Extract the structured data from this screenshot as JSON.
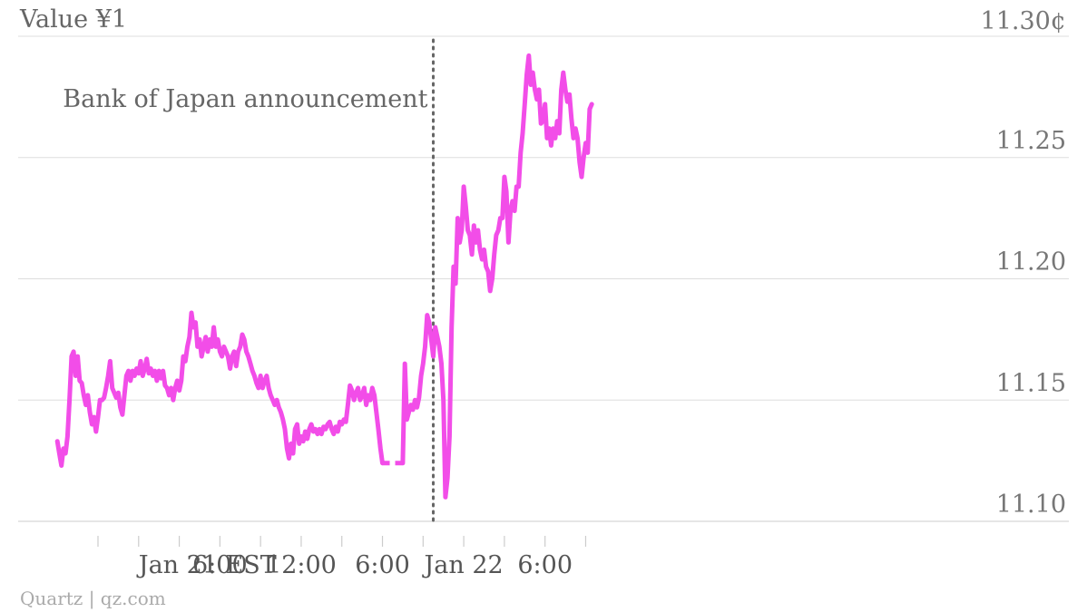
{
  "source": "Quartz | qz.com",
  "chart_data": {
    "type": "line",
    "title": "Value ¥1",
    "y_unit_label": "11.30¢",
    "ylim": [
      11.1,
      11.3
    ],
    "y_ticks": [
      11.1,
      11.15,
      11.2,
      11.25,
      11.3
    ],
    "y_tick_labels": [
      "11.10",
      "11.15",
      "11.20",
      "11.25",
      "11.30¢"
    ],
    "x_tick_labels": [
      "Jan 21 EST",
      "6:00",
      "12:00",
      "6:00",
      "Jan 22",
      "6:00"
    ],
    "x_hours": [
      0,
      6,
      12,
      18,
      24,
      30
    ],
    "xlim": [
      -6,
      32.5
    ],
    "annotation": {
      "text": "Bank of Japan announcement",
      "x": 21.75
    },
    "gap": {
      "from": 18,
      "to": 19.5,
      "value": 11.124
    },
    "colors": {
      "line": "#f24de8",
      "annotation": "#666666",
      "grid": "#dddddd",
      "text": "#777777"
    },
    "series": [
      {
        "values": [
          [
            -6.0,
            11.133
          ],
          [
            -5.85,
            11.128
          ],
          [
            -5.7,
            11.123
          ],
          [
            -5.55,
            11.13
          ],
          [
            -5.4,
            11.128
          ],
          [
            -5.25,
            11.135
          ],
          [
            -5.1,
            11.15
          ],
          [
            -4.95,
            11.168
          ],
          [
            -4.8,
            11.17
          ],
          [
            -4.65,
            11.16
          ],
          [
            -4.5,
            11.168
          ],
          [
            -4.35,
            11.158
          ],
          [
            -4.2,
            11.157
          ],
          [
            -4.05,
            11.152
          ],
          [
            -3.9,
            11.148
          ],
          [
            -3.75,
            11.152
          ],
          [
            -3.6,
            11.145
          ],
          [
            -3.45,
            11.14
          ],
          [
            -3.3,
            11.143
          ],
          [
            -3.15,
            11.137
          ],
          [
            -3.0,
            11.143
          ],
          [
            -2.85,
            11.15
          ],
          [
            -2.7,
            11.15
          ],
          [
            -2.55,
            11.151
          ],
          [
            -2.4,
            11.155
          ],
          [
            -2.25,
            11.16
          ],
          [
            -2.1,
            11.166
          ],
          [
            -1.95,
            11.155
          ],
          [
            -1.8,
            11.153
          ],
          [
            -1.65,
            11.151
          ],
          [
            -1.5,
            11.153
          ],
          [
            -1.35,
            11.147
          ],
          [
            -1.2,
            11.144
          ],
          [
            -1.05,
            11.152
          ],
          [
            -0.9,
            11.16
          ],
          [
            -0.75,
            11.162
          ],
          [
            -0.6,
            11.158
          ],
          [
            -0.45,
            11.162
          ],
          [
            -0.3,
            11.16
          ],
          [
            -0.15,
            11.163
          ],
          [
            0.0,
            11.161
          ],
          [
            0.15,
            11.166
          ],
          [
            0.3,
            11.16
          ],
          [
            0.45,
            11.163
          ],
          [
            0.6,
            11.167
          ],
          [
            0.75,
            11.161
          ],
          [
            0.9,
            11.163
          ],
          [
            1.05,
            11.16
          ],
          [
            1.2,
            11.162
          ],
          [
            1.35,
            11.158
          ],
          [
            1.5,
            11.162
          ],
          [
            1.65,
            11.159
          ],
          [
            1.8,
            11.162
          ],
          [
            1.95,
            11.156
          ],
          [
            2.1,
            11.155
          ],
          [
            2.25,
            11.152
          ],
          [
            2.4,
            11.155
          ],
          [
            2.55,
            11.15
          ],
          [
            2.7,
            11.155
          ],
          [
            2.85,
            11.158
          ],
          [
            3.0,
            11.154
          ],
          [
            3.15,
            11.158
          ],
          [
            3.3,
            11.168
          ],
          [
            3.45,
            11.166
          ],
          [
            3.6,
            11.172
          ],
          [
            3.75,
            11.176
          ],
          [
            3.9,
            11.186
          ],
          [
            4.05,
            11.18
          ],
          [
            4.2,
            11.182
          ],
          [
            4.35,
            11.172
          ],
          [
            4.5,
            11.175
          ],
          [
            4.65,
            11.168
          ],
          [
            4.8,
            11.172
          ],
          [
            4.95,
            11.176
          ],
          [
            5.1,
            11.17
          ],
          [
            5.25,
            11.175
          ],
          [
            5.4,
            11.172
          ],
          [
            5.55,
            11.18
          ],
          [
            5.7,
            11.172
          ],
          [
            5.85,
            11.175
          ],
          [
            6.0,
            11.17
          ],
          [
            6.15,
            11.168
          ],
          [
            6.3,
            11.172
          ],
          [
            6.45,
            11.17
          ],
          [
            6.6,
            11.168
          ],
          [
            6.75,
            11.163
          ],
          [
            6.9,
            11.168
          ],
          [
            7.05,
            11.17
          ],
          [
            7.2,
            11.164
          ],
          [
            7.35,
            11.17
          ],
          [
            7.5,
            11.172
          ],
          [
            7.65,
            11.177
          ],
          [
            7.8,
            11.175
          ],
          [
            7.95,
            11.17
          ],
          [
            8.1,
            11.168
          ],
          [
            8.25,
            11.165
          ],
          [
            8.4,
            11.162
          ],
          [
            8.55,
            11.16
          ],
          [
            8.7,
            11.157
          ],
          [
            8.85,
            11.155
          ],
          [
            9.0,
            11.16
          ],
          [
            9.15,
            11.155
          ],
          [
            9.3,
            11.158
          ],
          [
            9.45,
            11.16
          ],
          [
            9.6,
            11.155
          ],
          [
            9.75,
            11.152
          ],
          [
            9.9,
            11.15
          ],
          [
            10.05,
            11.148
          ],
          [
            10.2,
            11.15
          ],
          [
            10.35,
            11.147
          ],
          [
            10.5,
            11.145
          ],
          [
            10.65,
            11.142
          ],
          [
            10.8,
            11.138
          ],
          [
            10.95,
            11.13
          ],
          [
            11.1,
            11.126
          ],
          [
            11.25,
            11.132
          ],
          [
            11.4,
            11.128
          ],
          [
            11.55,
            11.138
          ],
          [
            11.7,
            11.14
          ],
          [
            11.85,
            11.132
          ],
          [
            12.0,
            11.135
          ],
          [
            12.15,
            11.133
          ],
          [
            12.3,
            11.137
          ],
          [
            12.45,
            11.134
          ],
          [
            12.6,
            11.138
          ],
          [
            12.75,
            11.14
          ],
          [
            12.9,
            11.137
          ],
          [
            13.05,
            11.138
          ],
          [
            13.2,
            11.136
          ],
          [
            13.35,
            11.138
          ],
          [
            13.5,
            11.136
          ],
          [
            13.65,
            11.139
          ],
          [
            13.8,
            11.138
          ],
          [
            13.95,
            11.14
          ],
          [
            14.1,
            11.141
          ],
          [
            14.25,
            11.138
          ],
          [
            14.4,
            11.136
          ],
          [
            14.55,
            11.139
          ],
          [
            14.7,
            11.137
          ],
          [
            14.85,
            11.141
          ],
          [
            15.0,
            11.14
          ],
          [
            15.15,
            11.142
          ],
          [
            15.3,
            11.141
          ],
          [
            15.45,
            11.148
          ],
          [
            15.6,
            11.156
          ],
          [
            15.75,
            11.154
          ],
          [
            15.9,
            11.15
          ],
          [
            16.05,
            11.153
          ],
          [
            16.2,
            11.155
          ],
          [
            16.35,
            11.15
          ],
          [
            16.5,
            11.152
          ],
          [
            16.65,
            11.155
          ],
          [
            16.8,
            11.148
          ],
          [
            16.95,
            11.152
          ],
          [
            17.1,
            11.15
          ],
          [
            17.25,
            11.155
          ],
          [
            17.4,
            11.152
          ],
          [
            17.55,
            11.145
          ],
          [
            17.7,
            11.138
          ],
          [
            17.85,
            11.13
          ],
          [
            18.0,
            11.124
          ],
          [
            19.5,
            11.124
          ],
          [
            19.65,
            11.165
          ],
          [
            19.8,
            11.142
          ],
          [
            19.95,
            11.145
          ],
          [
            20.1,
            11.148
          ],
          [
            20.25,
            11.146
          ],
          [
            20.4,
            11.15
          ],
          [
            20.55,
            11.147
          ],
          [
            20.7,
            11.151
          ],
          [
            20.85,
            11.16
          ],
          [
            21.0,
            11.165
          ],
          [
            21.15,
            11.172
          ],
          [
            21.3,
            11.185
          ],
          [
            21.45,
            11.182
          ],
          [
            21.6,
            11.175
          ],
          [
            21.75,
            11.168
          ],
          [
            21.9,
            11.18
          ],
          [
            22.05,
            11.176
          ],
          [
            22.2,
            11.172
          ],
          [
            22.35,
            11.165
          ],
          [
            22.5,
            11.15
          ],
          [
            22.65,
            11.11
          ],
          [
            22.8,
            11.118
          ],
          [
            22.95,
            11.135
          ],
          [
            23.1,
            11.18
          ],
          [
            23.25,
            11.205
          ],
          [
            23.4,
            11.198
          ],
          [
            23.55,
            11.225
          ],
          [
            23.7,
            11.215
          ],
          [
            23.85,
            11.22
          ],
          [
            24.0,
            11.238
          ],
          [
            24.15,
            11.23
          ],
          [
            24.3,
            11.22
          ],
          [
            24.45,
            11.218
          ],
          [
            24.6,
            11.21
          ],
          [
            24.75,
            11.222
          ],
          [
            24.9,
            11.215
          ],
          [
            25.05,
            11.22
          ],
          [
            25.2,
            11.212
          ],
          [
            25.35,
            11.208
          ],
          [
            25.5,
            11.212
          ],
          [
            25.65,
            11.205
          ],
          [
            25.8,
            11.203
          ],
          [
            25.95,
            11.195
          ],
          [
            26.1,
            11.2
          ],
          [
            26.25,
            11.21
          ],
          [
            26.4,
            11.218
          ],
          [
            26.55,
            11.22
          ],
          [
            26.7,
            11.225
          ],
          [
            26.85,
            11.225
          ],
          [
            27.0,
            11.242
          ],
          [
            27.15,
            11.236
          ],
          [
            27.3,
            11.215
          ],
          [
            27.45,
            11.228
          ],
          [
            27.6,
            11.232
          ],
          [
            27.75,
            11.228
          ],
          [
            27.9,
            11.238
          ],
          [
            28.05,
            11.238
          ],
          [
            28.2,
            11.252
          ],
          [
            28.35,
            11.26
          ],
          [
            28.5,
            11.272
          ],
          [
            28.65,
            11.284
          ],
          [
            28.8,
            11.292
          ],
          [
            28.95,
            11.28
          ],
          [
            29.1,
            11.285
          ],
          [
            29.25,
            11.278
          ],
          [
            29.4,
            11.274
          ],
          [
            29.55,
            11.278
          ],
          [
            29.7,
            11.264
          ],
          [
            29.85,
            11.265
          ],
          [
            30.0,
            11.272
          ],
          [
            30.15,
            11.258
          ],
          [
            30.3,
            11.262
          ],
          [
            30.45,
            11.255
          ],
          [
            30.6,
            11.262
          ],
          [
            30.75,
            11.258
          ],
          [
            30.9,
            11.265
          ],
          [
            31.05,
            11.26
          ],
          [
            31.2,
            11.278
          ],
          [
            31.35,
            11.285
          ],
          [
            31.5,
            11.278
          ],
          [
            31.65,
            11.273
          ],
          [
            31.8,
            11.276
          ],
          [
            31.95,
            11.266
          ],
          [
            32.1,
            11.258
          ],
          [
            32.25,
            11.262
          ],
          [
            32.4,
            11.258
          ],
          [
            32.55,
            11.248
          ],
          [
            32.7,
            11.242
          ],
          [
            32.85,
            11.25
          ],
          [
            33.0,
            11.256
          ],
          [
            33.15,
            11.252
          ],
          [
            33.3,
            11.27
          ],
          [
            33.45,
            11.272
          ]
        ]
      }
    ]
  }
}
